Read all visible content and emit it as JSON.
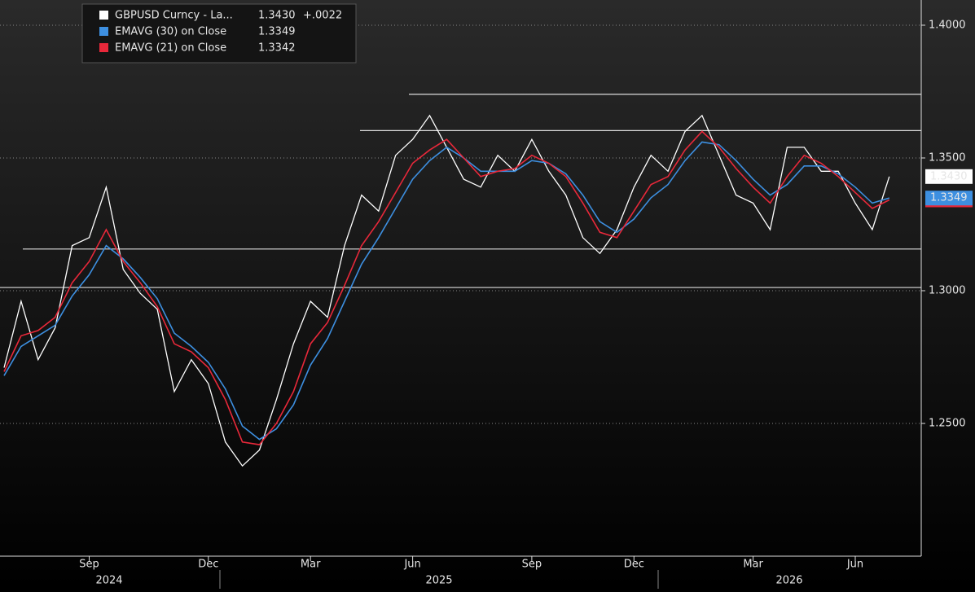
{
  "chart_data": {
    "type": "line",
    "categories": [
      null,
      null,
      null,
      null,
      null,
      "Sep",
      null,
      null,
      null,
      null,
      null,
      null,
      "Dec",
      null,
      null,
      null,
      null,
      null,
      "Mar",
      null,
      null,
      null,
      null,
      null,
      "Jun",
      null,
      null,
      null,
      null,
      null,
      null,
      "Sep",
      null,
      null,
      null,
      null,
      null,
      "Dec",
      null,
      null,
      null,
      null,
      null,
      null,
      "Mar",
      null,
      null,
      null,
      null,
      null,
      "Jun",
      null,
      null
    ],
    "x_group_labels": [
      "2024",
      "2025",
      "2026"
    ],
    "series": [
      {
        "name": "GBPUSD Curncy - La...",
        "color": "#ffffff",
        "last": {
          "value": 1.343,
          "label": "1.3430"
        },
        "change": {
          "value": 0.0022,
          "label": "+.0022"
        },
        "values": [
          1.271,
          1.296,
          1.274,
          1.286,
          1.317,
          1.32,
          1.339,
          1.308,
          1.299,
          1.293,
          1.262,
          1.274,
          1.265,
          1.243,
          1.234,
          1.24,
          1.259,
          1.28,
          1.296,
          1.29,
          1.317,
          1.336,
          1.33,
          1.351,
          1.357,
          1.366,
          1.354,
          1.342,
          1.339,
          1.351,
          1.345,
          1.357,
          1.345,
          1.336,
          1.32,
          1.314,
          1.323,
          1.339,
          1.351,
          1.345,
          1.36,
          1.366,
          1.351,
          1.336,
          1.333,
          1.323,
          1.354,
          1.354,
          1.345,
          1.345,
          1.333,
          1.323,
          1.343
        ]
      },
      {
        "name": "EMAVG (30)  on Close",
        "color": "#3d8fe0",
        "last": {
          "value": 1.3349,
          "label": "1.3349"
        },
        "values": [
          1.268,
          1.279,
          1.283,
          1.287,
          1.298,
          1.306,
          1.317,
          1.312,
          1.305,
          1.297,
          1.284,
          1.279,
          1.273,
          1.263,
          1.249,
          1.244,
          1.248,
          1.257,
          1.272,
          1.282,
          1.296,
          1.31,
          1.32,
          1.331,
          1.342,
          1.349,
          1.354,
          1.35,
          1.345,
          1.345,
          1.345,
          1.349,
          1.348,
          1.344,
          1.336,
          1.326,
          1.322,
          1.327,
          1.335,
          1.34,
          1.349,
          1.356,
          1.355,
          1.349,
          1.342,
          1.336,
          1.34,
          1.347,
          1.347,
          1.344,
          1.339,
          1.333,
          1.3349
        ]
      },
      {
        "name": "EMAVG (21)  on Close",
        "color": "#e8283a",
        "last": {
          "value": 1.3342,
          "label": "1.3342"
        },
        "values": [
          1.2695,
          1.283,
          1.285,
          1.29,
          1.303,
          1.311,
          1.323,
          1.311,
          1.303,
          1.294,
          1.28,
          1.277,
          1.271,
          1.259,
          1.243,
          1.242,
          1.25,
          1.262,
          1.28,
          1.288,
          1.302,
          1.317,
          1.326,
          1.337,
          1.348,
          1.353,
          1.357,
          1.35,
          1.343,
          1.345,
          1.346,
          1.351,
          1.348,
          1.343,
          1.333,
          1.322,
          1.32,
          1.33,
          1.34,
          1.343,
          1.353,
          1.36,
          1.354,
          1.346,
          1.339,
          1.333,
          1.343,
          1.351,
          1.348,
          1.343,
          1.337,
          1.331,
          1.3342
        ]
      }
    ],
    "hlines": [
      1.374,
      1.3603,
      1.3157,
      1.3012
    ],
    "ylim": [
      1.2,
      1.4095
    ],
    "yticks": [
      {
        "value": 1.4,
        "label": "1.4000"
      },
      {
        "value": 1.35,
        "label": "1.3500"
      },
      {
        "value": 1.3,
        "label": "1.3000"
      },
      {
        "value": 1.25,
        "label": "1.2500"
      }
    ],
    "grid": true
  }
}
